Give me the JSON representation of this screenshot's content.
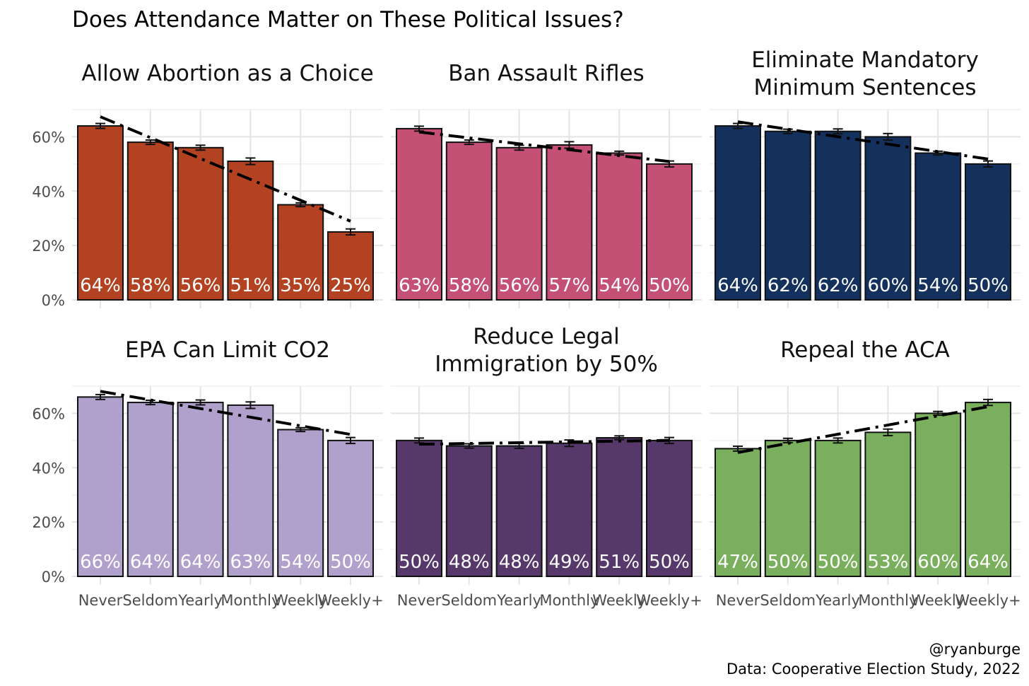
{
  "title": "Does Attendance Matter on These Political Issues?",
  "caption": [
    "@ryanburge",
    "Data: Cooperative Election Study, 2022"
  ],
  "chart_data": {
    "type": "bar",
    "categories": [
      "Never",
      "Seldom",
      "Yearly",
      "Monthly",
      "Weekly",
      "Weekly+"
    ],
    "ylim": [
      0,
      70
    ],
    "yticks": [
      0,
      20,
      40,
      60
    ],
    "ytick_labels": [
      "0%",
      "20%",
      "40%",
      "60%"
    ],
    "grid": true,
    "trend_line": "dashed linear fit",
    "facets": [
      {
        "title": [
          "Allow Abortion as a Choice"
        ],
        "color": "#B34222",
        "values": [
          64,
          58,
          56,
          51,
          35,
          25
        ],
        "labels": [
          "64%",
          "58%",
          "56%",
          "51%",
          "35%",
          "25%"
        ],
        "errors": [
          0.9,
          0.8,
          0.9,
          1.2,
          0.7,
          1.1
        ]
      },
      {
        "title": [
          "Ban Assault Rifles"
        ],
        "color": "#C55075",
        "values": [
          63,
          58,
          56,
          57,
          54,
          50
        ],
        "labels": [
          "63%",
          "58%",
          "56%",
          "57%",
          "54%",
          "50%"
        ],
        "errors": [
          0.9,
          0.8,
          0.9,
          1.2,
          0.7,
          1.1
        ]
      },
      {
        "title": [
          "Eliminate Mandatory",
          "Minimum Sentences"
        ],
        "color": "#14315E",
        "values": [
          64,
          62,
          62,
          60,
          54,
          50
        ],
        "labels": [
          "64%",
          "62%",
          "62%",
          "60%",
          "54%",
          "50%"
        ],
        "errors": [
          0.9,
          0.8,
          0.9,
          1.2,
          0.7,
          1.1
        ]
      },
      {
        "title": [
          "EPA Can Limit CO2"
        ],
        "color": "#B0A0CC",
        "values": [
          66,
          64,
          64,
          63,
          54,
          50
        ],
        "labels": [
          "66%",
          "64%",
          "64%",
          "63%",
          "54%",
          "50%"
        ],
        "errors": [
          0.9,
          0.8,
          0.9,
          1.2,
          0.7,
          1.1
        ]
      },
      {
        "title": [
          "Reduce Legal",
          "Immigration by 50%"
        ],
        "color": "#57386A",
        "values": [
          50,
          48,
          48,
          49,
          51,
          50
        ],
        "labels": [
          "50%",
          "48%",
          "48%",
          "49%",
          "51%",
          "50%"
        ],
        "errors": [
          0.9,
          0.8,
          0.9,
          1.2,
          0.7,
          1.1
        ]
      },
      {
        "title": [
          "Repeal the ACA"
        ],
        "color": "#7AB05D",
        "values": [
          47,
          50,
          50,
          53,
          60,
          64
        ],
        "labels": [
          "47%",
          "50%",
          "50%",
          "53%",
          "60%",
          "64%"
        ],
        "errors": [
          0.9,
          0.8,
          0.9,
          1.2,
          0.7,
          1.1
        ]
      }
    ]
  }
}
